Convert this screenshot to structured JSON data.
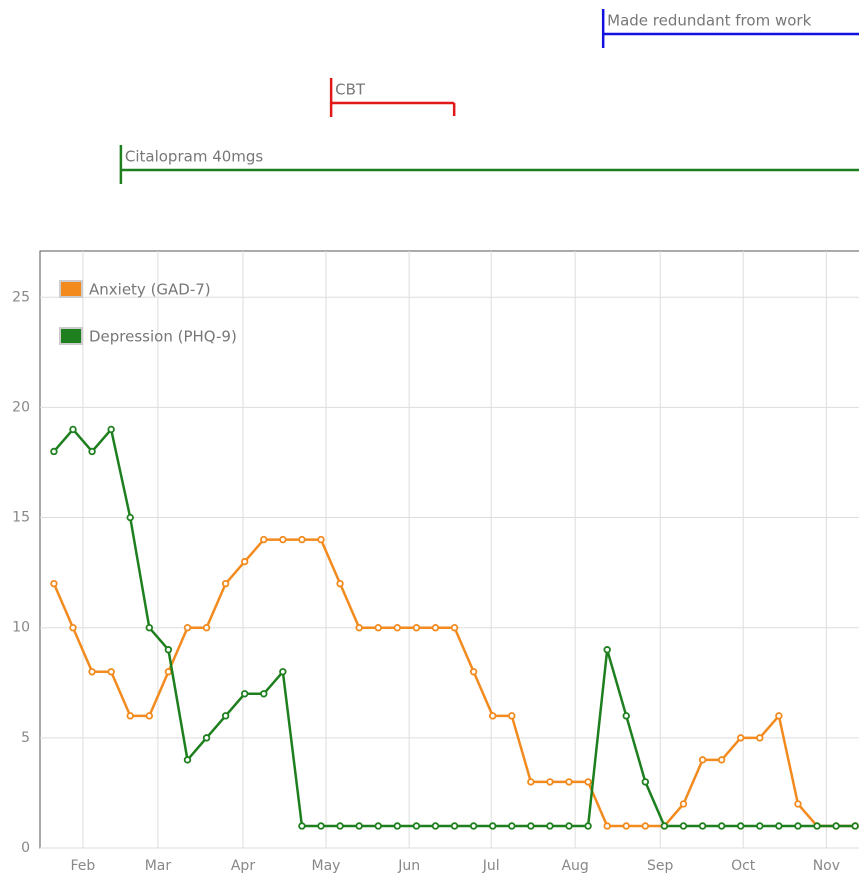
{
  "chart_data": {
    "type": "line",
    "x": [
      0,
      1,
      2,
      3,
      4,
      5,
      6,
      7,
      8,
      9,
      10,
      11,
      12,
      13,
      14,
      15,
      16,
      17,
      18,
      19,
      20,
      21,
      22,
      23,
      24,
      25,
      26,
      27,
      28,
      29,
      30,
      31,
      32,
      33,
      34,
      35,
      36,
      37,
      38,
      39,
      40,
      41,
      42
    ],
    "xlim": [
      -0.73,
      42.2
    ],
    "xticks": [
      {
        "value": 1.52,
        "label": "Feb"
      },
      {
        "value": 5.45,
        "label": "Mar"
      },
      {
        "value": 9.91,
        "label": "Apr"
      },
      {
        "value": 14.26,
        "label": "May"
      },
      {
        "value": 18.62,
        "label": "Jun"
      },
      {
        "value": 22.92,
        "label": "Jul"
      },
      {
        "value": 27.32,
        "label": "Aug"
      },
      {
        "value": 31.78,
        "label": "Sep"
      },
      {
        "value": 36.13,
        "label": "Oct"
      },
      {
        "value": 40.49,
        "label": "Nov"
      }
    ],
    "ylim": [
      0,
      27.1
    ],
    "yticks": [
      0,
      5,
      10,
      15,
      20,
      25
    ],
    "grid": true,
    "legend": "upper left",
    "series": [
      {
        "name": "Anxiety (GAD-7)",
        "color": "#f28a1e",
        "values": [
          12,
          10,
          8,
          8,
          6,
          6,
          8,
          10,
          10,
          12,
          13,
          14,
          14,
          14,
          14,
          12,
          10,
          10,
          10,
          10,
          10,
          10,
          8,
          6,
          6,
          3,
          3,
          3,
          3,
          1,
          1,
          1,
          1,
          2,
          4,
          4,
          5,
          5,
          6,
          2,
          1,
          1,
          1
        ]
      },
      {
        "name": "Depression (PHQ-9)",
        "color": "#1e7f1e",
        "values": [
          18,
          19,
          18,
          19,
          15,
          10,
          9,
          4,
          5,
          6,
          7,
          7,
          8,
          1,
          1,
          1,
          1,
          1,
          1,
          1,
          1,
          1,
          1,
          1,
          1,
          1,
          1,
          1,
          1,
          9,
          6,
          3,
          1,
          1,
          1,
          1,
          1,
          1,
          1,
          1,
          1,
          1,
          1
        ]
      }
    ]
  },
  "periods": [
    {
      "label": "Made redundant from work",
      "start": 28.79,
      "color": "#1010e0"
    },
    {
      "label": "CBT",
      "start": 14.53,
      "end": 20.98,
      "color": "#e01818"
    },
    {
      "label": "Citalopram 40mgs",
      "start": 3.51,
      "color": "#1e7f1e"
    }
  ]
}
